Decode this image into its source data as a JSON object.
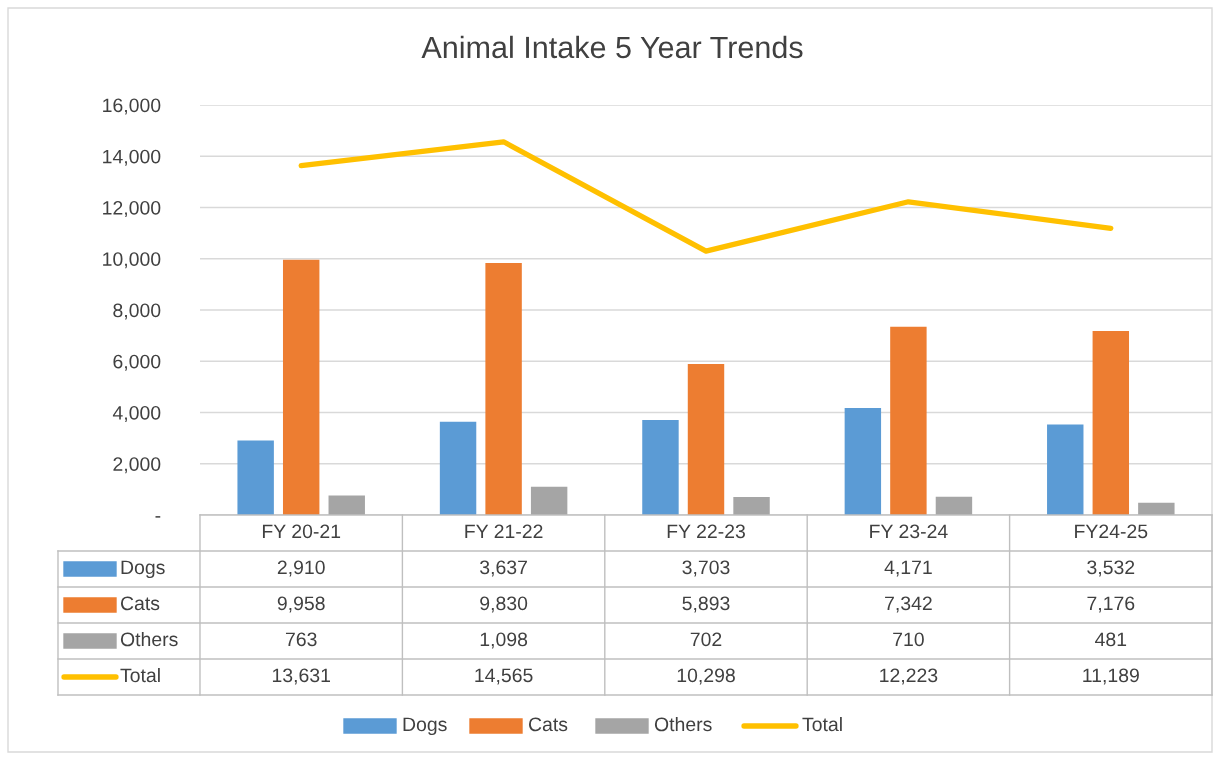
{
  "chart_data": {
    "type": "bar",
    "title": "Animal Intake 5 Year Trends",
    "categories": [
      "FY 20-21",
      "FY 21-22",
      "FY 22-23",
      "FY 23-24",
      "FY24-25"
    ],
    "series": [
      {
        "name": "Dogs",
        "color": "#5b9bd5",
        "values": [
          2910,
          3637,
          3703,
          4171,
          3532
        ],
        "value_labels": [
          "2,910",
          "3,637",
          "3,703",
          "4,171",
          "3,532"
        ]
      },
      {
        "name": "Cats",
        "color": "#ed7d31",
        "values": [
          9958,
          9830,
          5893,
          7342,
          7176
        ],
        "value_labels": [
          "9,958",
          "9,830",
          "5,893",
          "7,342",
          "7,176"
        ]
      },
      {
        "name": "Others",
        "color": "#a5a5a5",
        "values": [
          763,
          1098,
          702,
          710,
          481
        ],
        "value_labels": [
          "763",
          "1,098",
          "702",
          "710",
          "481"
        ]
      },
      {
        "name": "Total",
        "color": "#ffc000",
        "type": "line",
        "values": [
          13631,
          14565,
          10298,
          12223,
          11189
        ],
        "value_labels": [
          "13,631",
          "14,565",
          "10,298",
          "12,223",
          "11,189"
        ]
      }
    ],
    "ylim": [
      0,
      16000
    ],
    "yticks": [
      {
        "value": 0,
        "label": "-"
      },
      {
        "value": 2000,
        "label": "2,000"
      },
      {
        "value": 4000,
        "label": "4,000"
      },
      {
        "value": 6000,
        "label": "6,000"
      },
      {
        "value": 8000,
        "label": "8,000"
      },
      {
        "value": 10000,
        "label": "10,000"
      },
      {
        "value": 12000,
        "label": "12,000"
      },
      {
        "value": 14000,
        "label": "14,000"
      },
      {
        "value": 16000,
        "label": "16,000"
      }
    ],
    "grid": "y",
    "legend": "bottom"
  }
}
